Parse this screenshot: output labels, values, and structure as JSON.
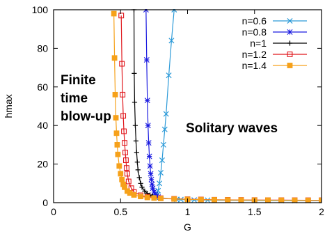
{
  "chart_data": {
    "type": "line",
    "title": "",
    "xlabel": "G",
    "ylabel": "hmax",
    "xlim": [
      0,
      2
    ],
    "ylim": [
      0,
      100
    ],
    "xticks": [
      "0",
      "0.5",
      "1",
      "1.5",
      "2"
    ],
    "yticks": [
      "0",
      "20",
      "40",
      "60",
      "80",
      "100"
    ],
    "grid": false,
    "legend_position": "top-right",
    "annotations": [
      {
        "text": "Finite",
        "group": "left"
      },
      {
        "text": "time",
        "group": "left"
      },
      {
        "text": "blow-up",
        "group": "left"
      },
      {
        "text": "Solitary waves",
        "group": "right"
      }
    ],
    "series": [
      {
        "name": "n=0.6",
        "color": "#2c9ad8",
        "marker": "x",
        "x": [
          0.76,
          0.77,
          0.78,
          0.79,
          0.8,
          0.81,
          0.82,
          0.83,
          0.84,
          0.86,
          0.88,
          0.9,
          0.92,
          0.95,
          1.0,
          1.05,
          1.1,
          1.15,
          1.2,
          1.3,
          1.4,
          1.5,
          1.6,
          1.7,
          1.8,
          1.9,
          2.0
        ],
        "y": [
          2.8,
          4.0,
          6.2,
          10.0,
          15.5,
          22.0,
          30.0,
          38.0,
          46.0,
          66.0,
          84.0,
          100.0,
          1.7,
          1.6,
          1.5,
          1.4,
          1.35,
          1.3,
          1.25,
          1.2,
          1.15,
          1.1,
          1.08,
          1.06,
          1.05,
          1.04,
          1.03
        ],
        "y_note": ""
      },
      {
        "name": "n=0.8",
        "color": "#1a1ae0",
        "marker": "*",
        "x": [
          0.69,
          0.695,
          0.7,
          0.705,
          0.71,
          0.715,
          0.72,
          0.725,
          0.73,
          0.735,
          0.74,
          0.75,
          0.76,
          0.77,
          0.78
        ],
        "y": [
          100,
          74,
          53,
          40,
          31,
          24,
          19,
          15,
          12,
          9.5,
          7.5,
          5.5,
          4.2,
          3.4,
          2.9
        ]
      },
      {
        "name": "n=1",
        "color": "#000000",
        "marker": "+",
        "x": [
          0.6,
          0.602,
          0.605,
          0.61,
          0.615,
          0.62,
          0.625,
          0.63,
          0.64,
          0.65,
          0.66,
          0.68,
          0.7,
          0.72,
          0.74
        ],
        "y": [
          100,
          67,
          52,
          40,
          32,
          26,
          21,
          17,
          13,
          10,
          8,
          6,
          4.8,
          4,
          3.4
        ]
      },
      {
        "name": "n=1.2",
        "color": "#e0161b",
        "marker": "square-open",
        "x": [
          0.505,
          0.51,
          0.515,
          0.52,
          0.525,
          0.53,
          0.535,
          0.54,
          0.545,
          0.55,
          0.56,
          0.58,
          0.6,
          0.65,
          0.7,
          0.8,
          0.9,
          1.0,
          1.1,
          1.2,
          1.3,
          1.4,
          1.5,
          1.6,
          1.7,
          1.8,
          1.9,
          2.0
        ],
        "y": [
          97,
          72,
          56,
          45,
          37,
          31,
          26,
          22,
          18,
          15,
          11,
          7.5,
          5.5,
          3.8,
          3.0,
          2.3,
          2.0,
          1.8,
          1.65,
          1.5,
          1.45,
          1.4,
          1.35,
          1.3,
          1.3,
          1.28,
          1.25,
          1.25
        ]
      },
      {
        "name": "n=1.4",
        "color": "#f6a11a",
        "marker": "square-filled",
        "x": [
          0.45,
          0.455,
          0.46,
          0.465,
          0.47,
          0.475,
          0.48,
          0.49,
          0.5,
          0.51,
          0.52,
          0.53,
          0.55,
          0.57,
          0.6,
          0.65,
          0.7,
          0.75,
          0.8,
          0.9,
          1.0,
          1.1,
          1.2,
          1.3,
          1.4,
          1.5,
          1.6,
          1.7,
          1.8,
          1.9,
          2.0
        ],
        "y": [
          98,
          75,
          56,
          44,
          36,
          30,
          25,
          19,
          15,
          12,
          9.5,
          8,
          6,
          5,
          4,
          3.2,
          2.7,
          2.4,
          2.2,
          1.9,
          1.7,
          1.55,
          1.45,
          1.4,
          1.35,
          1.3,
          1.28,
          1.25,
          1.22,
          1.2,
          1.2
        ]
      }
    ]
  }
}
